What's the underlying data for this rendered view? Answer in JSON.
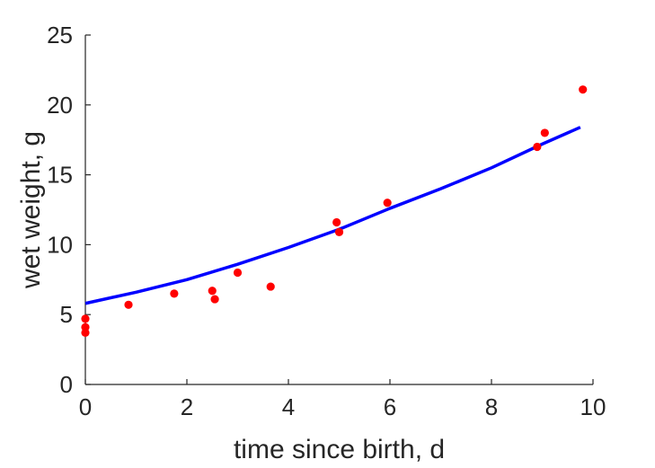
{
  "chart_data": {
    "type": "scatter",
    "title": "",
    "xlabel": "time since birth, d",
    "ylabel": "wet weight, g",
    "xlim": [
      0,
      10
    ],
    "ylim": [
      0,
      25
    ],
    "xticks": [
      "0",
      "2",
      "4",
      "6",
      "8",
      "10"
    ],
    "yticks": [
      "0",
      "5",
      "10",
      "15",
      "20",
      "25"
    ],
    "grid": false,
    "series": [
      {
        "type": "scatter",
        "color": "#ff0000",
        "x": [
          0.0,
          0.0,
          0.0,
          0.85,
          1.75,
          2.5,
          2.55,
          3.0,
          3.65,
          4.95,
          5.0,
          5.95,
          8.9,
          9.05,
          9.8
        ],
        "y": [
          3.7,
          4.1,
          4.7,
          5.7,
          6.5,
          6.7,
          6.1,
          8.0,
          7.0,
          11.6,
          10.9,
          13.0,
          17.0,
          18.0,
          21.1
        ]
      },
      {
        "type": "line",
        "color": "#0000ff",
        "x": [
          0,
          1,
          2,
          3,
          4,
          5,
          6,
          7,
          8,
          9,
          9.75
        ],
        "y": [
          5.8,
          6.6,
          7.5,
          8.6,
          9.8,
          11.1,
          12.6,
          14.0,
          15.5,
          17.2,
          18.4
        ]
      }
    ]
  }
}
